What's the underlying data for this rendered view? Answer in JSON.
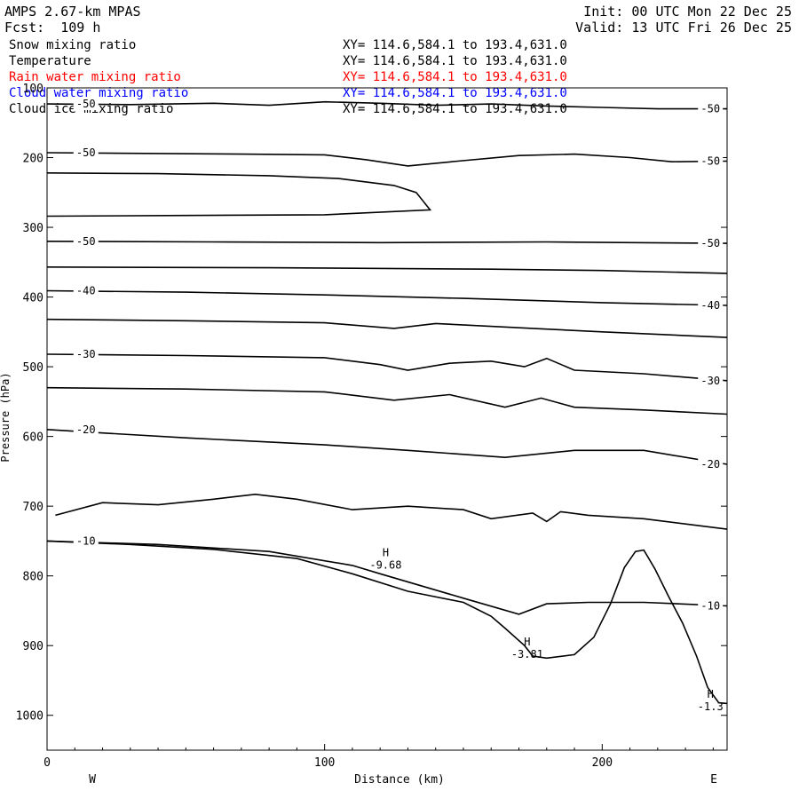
{
  "header": {
    "model": "AMPS 2.67-km MPAS",
    "forecast": "Fcst:  109 h",
    "init": "Init: 00 UTC Mon 22 Dec 25",
    "valid": "Valid: 13 UTC Fri 26 Dec 25"
  },
  "fields": [
    {
      "name": "Snow mixing ratio",
      "xy": "XY= 114.6,584.1 to 193.4,631.0",
      "color": "#000000"
    },
    {
      "name": "Temperature",
      "xy": "XY= 114.6,584.1 to 193.4,631.0",
      "color": "#000000"
    },
    {
      "name": "Rain water mixing ratio",
      "xy": "XY= 114.6,584.1 to 193.4,631.0",
      "color": "#ff0000"
    },
    {
      "name": "Cloud water mixing ratio",
      "xy": "XY= 114.6,584.1 to 193.4,631.0",
      "color": "#0000ff"
    },
    {
      "name": "Cloud ice mixing ratio",
      "xy": "XY= 114.6,584.1 to 193.4,631.0",
      "color": "#000000"
    }
  ],
  "chart_data": {
    "type": "line",
    "xlabel": "Distance (km)",
    "ylabel": "Pressure (hPa)",
    "xlim": [
      0,
      245
    ],
    "ylim": [
      1050,
      100
    ],
    "x_ticks": [
      0,
      100,
      200
    ],
    "y_ticks": [
      100,
      200,
      300,
      400,
      500,
      600,
      700,
      800,
      900,
      1000
    ],
    "x_tick_labels": [
      "0",
      "100",
      "200"
    ],
    "y_tick_labels": [
      "100",
      "200",
      "300",
      "400",
      "500",
      "600",
      "700",
      "800",
      "900",
      "1000"
    ],
    "left_end_label": "W",
    "right_end_label": "E",
    "grid": false,
    "terrain": [
      [
        0,
        750
      ],
      [
        30,
        755
      ],
      [
        60,
        762
      ],
      [
        90,
        775
      ],
      [
        110,
        797
      ],
      [
        130,
        822
      ],
      [
        150,
        838
      ],
      [
        160,
        858
      ],
      [
        165,
        875
      ],
      [
        172,
        900
      ],
      [
        175,
        915
      ],
      [
        180,
        918
      ],
      [
        190,
        913
      ],
      [
        197,
        888
      ],
      [
        203,
        840
      ],
      [
        208,
        788
      ],
      [
        212,
        765
      ],
      [
        215,
        763
      ],
      [
        219,
        790
      ],
      [
        224,
        830
      ],
      [
        229,
        868
      ],
      [
        234,
        915
      ],
      [
        238,
        960
      ],
      [
        242,
        982
      ],
      [
        245,
        983
      ]
    ],
    "isotherms": [
      {
        "level": "-50",
        "points": [
          [
            0,
            123
          ],
          [
            30,
            124
          ],
          [
            60,
            122
          ],
          [
            80,
            125
          ],
          [
            100,
            120
          ],
          [
            120,
            122
          ],
          [
            140,
            125
          ],
          [
            160,
            123
          ],
          [
            180,
            126
          ],
          [
            200,
            128
          ],
          [
            220,
            130
          ],
          [
            245,
            130
          ]
        ]
      },
      {
        "level": "-50",
        "points": [
          [
            0,
            193
          ],
          [
            35,
            194
          ],
          [
            70,
            195
          ],
          [
            100,
            196
          ],
          [
            115,
            203
          ],
          [
            130,
            212
          ],
          [
            148,
            205
          ],
          [
            170,
            197
          ],
          [
            190,
            195
          ],
          [
            210,
            200
          ],
          [
            225,
            206
          ],
          [
            245,
            205
          ]
        ]
      },
      {
        "level": "",
        "points": [
          [
            0,
            222
          ],
          [
            40,
            223
          ],
          [
            80,
            226
          ],
          [
            105,
            230
          ],
          [
            125,
            240
          ],
          [
            133,
            250
          ],
          [
            138,
            275
          ],
          [
            100,
            282
          ],
          [
            50,
            283
          ],
          [
            0,
            284
          ]
        ]
      },
      {
        "level": "-50",
        "points": [
          [
            0,
            320
          ],
          [
            60,
            321
          ],
          [
            120,
            322
          ],
          [
            180,
            321
          ],
          [
            245,
            323
          ]
        ]
      },
      {
        "level": "",
        "points": [
          [
            0,
            357
          ],
          [
            80,
            358
          ],
          [
            160,
            360
          ],
          [
            200,
            362
          ],
          [
            245,
            366
          ]
        ]
      },
      {
        "level": "-40",
        "points": [
          [
            0,
            391
          ],
          [
            50,
            393
          ],
          [
            100,
            397
          ],
          [
            150,
            402
          ],
          [
            200,
            408
          ],
          [
            245,
            412
          ]
        ]
      },
      {
        "level": "",
        "points": [
          [
            0,
            432
          ],
          [
            50,
            434
          ],
          [
            100,
            437
          ],
          [
            125,
            445
          ],
          [
            140,
            438
          ],
          [
            175,
            445
          ],
          [
            200,
            450
          ],
          [
            245,
            458
          ]
        ]
      },
      {
        "level": "-30",
        "points": [
          [
            0,
            482
          ],
          [
            50,
            484
          ],
          [
            100,
            487
          ],
          [
            120,
            497
          ],
          [
            130,
            505
          ],
          [
            145,
            495
          ],
          [
            160,
            492
          ],
          [
            172,
            500
          ],
          [
            180,
            488
          ],
          [
            190,
            505
          ],
          [
            215,
            510
          ],
          [
            245,
            520
          ]
        ]
      },
      {
        "level": "",
        "points": [
          [
            0,
            530
          ],
          [
            50,
            532
          ],
          [
            100,
            536
          ],
          [
            125,
            548
          ],
          [
            145,
            540
          ],
          [
            165,
            558
          ],
          [
            178,
            545
          ],
          [
            190,
            558
          ],
          [
            215,
            562
          ],
          [
            245,
            568
          ]
        ]
      },
      {
        "level": "-20",
        "points": [
          [
            0,
            590
          ],
          [
            20,
            595
          ],
          [
            50,
            602
          ],
          [
            100,
            612
          ],
          [
            130,
            620
          ],
          [
            165,
            630
          ],
          [
            190,
            620
          ],
          [
            215,
            620
          ],
          [
            245,
            640
          ]
        ]
      },
      {
        "level": "",
        "points": [
          [
            3,
            713
          ],
          [
            20,
            695
          ],
          [
            40,
            698
          ],
          [
            60,
            690
          ],
          [
            75,
            683
          ],
          [
            90,
            690
          ],
          [
            110,
            705
          ],
          [
            130,
            700
          ],
          [
            150,
            705
          ],
          [
            160,
            718
          ],
          [
            175,
            710
          ],
          [
            180,
            722
          ],
          [
            185,
            708
          ],
          [
            195,
            713
          ],
          [
            215,
            718
          ],
          [
            245,
            733
          ]
        ]
      },
      {
        "level": "-10",
        "points": [
          [
            0,
            750
          ],
          [
            40,
            755
          ],
          [
            80,
            765
          ],
          [
            110,
            785
          ],
          [
            120,
            797
          ],
          [
            150,
            832
          ],
          [
            170,
            855
          ],
          [
            180,
            840
          ],
          [
            195,
            838
          ],
          [
            215,
            838
          ],
          [
            245,
            843
          ]
        ]
      }
    ],
    "annotations": [
      {
        "label": "H",
        "value": "-9.68",
        "x": 122,
        "y": 782
      },
      {
        "label": "H",
        "value": "-3.81",
        "x": 173,
        "y": 910
      },
      {
        "label": "H",
        "value": "-1.3",
        "x": 239,
        "y": 985
      }
    ]
  }
}
